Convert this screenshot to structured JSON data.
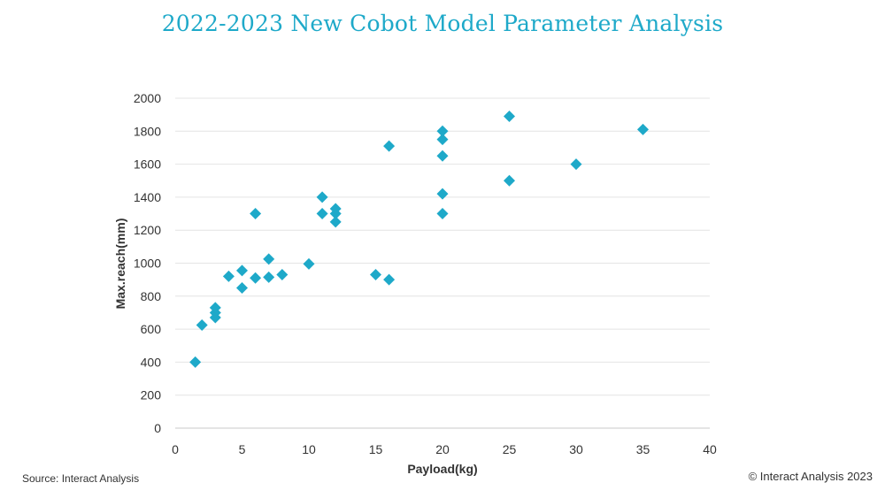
{
  "chart_data": {
    "type": "scatter",
    "title": "2022-2023 New Cobot Model Parameter Analysis",
    "xlabel": "Payload(kg)",
    "ylabel": "Max.reach(mm)",
    "xlim": [
      0,
      40
    ],
    "ylim": [
      0,
      2000
    ],
    "xticks": [
      0,
      5,
      10,
      15,
      20,
      25,
      30,
      35,
      40
    ],
    "yticks": [
      0,
      200,
      400,
      600,
      800,
      1000,
      1200,
      1400,
      1600,
      1800,
      2000
    ],
    "grid": "horizontal",
    "marker": "diamond",
    "color": "#1ea9c9",
    "points": [
      {
        "x": 1.5,
        "y": 400
      },
      {
        "x": 2,
        "y": 625
      },
      {
        "x": 3,
        "y": 670
      },
      {
        "x": 3,
        "y": 700
      },
      {
        "x": 3,
        "y": 730
      },
      {
        "x": 4,
        "y": 920
      },
      {
        "x": 5,
        "y": 850
      },
      {
        "x": 5,
        "y": 955
      },
      {
        "x": 6,
        "y": 910
      },
      {
        "x": 6,
        "y": 1300
      },
      {
        "x": 7,
        "y": 915
      },
      {
        "x": 7,
        "y": 1025
      },
      {
        "x": 8,
        "y": 930
      },
      {
        "x": 10,
        "y": 995
      },
      {
        "x": 11,
        "y": 1300
      },
      {
        "x": 11,
        "y": 1400
      },
      {
        "x": 12,
        "y": 1250
      },
      {
        "x": 12,
        "y": 1300
      },
      {
        "x": 12,
        "y": 1330
      },
      {
        "x": 15,
        "y": 930
      },
      {
        "x": 16,
        "y": 900
      },
      {
        "x": 16,
        "y": 1710
      },
      {
        "x": 20,
        "y": 1300
      },
      {
        "x": 20,
        "y": 1420
      },
      {
        "x": 20,
        "y": 1650
      },
      {
        "x": 20,
        "y": 1750
      },
      {
        "x": 20,
        "y": 1800
      },
      {
        "x": 25,
        "y": 1500
      },
      {
        "x": 25,
        "y": 1890
      },
      {
        "x": 30,
        "y": 1600
      },
      {
        "x": 35,
        "y": 1810
      }
    ]
  },
  "footer": {
    "source": "Source: Interact Analysis",
    "copyright": "© Interact Analysis 2023"
  }
}
